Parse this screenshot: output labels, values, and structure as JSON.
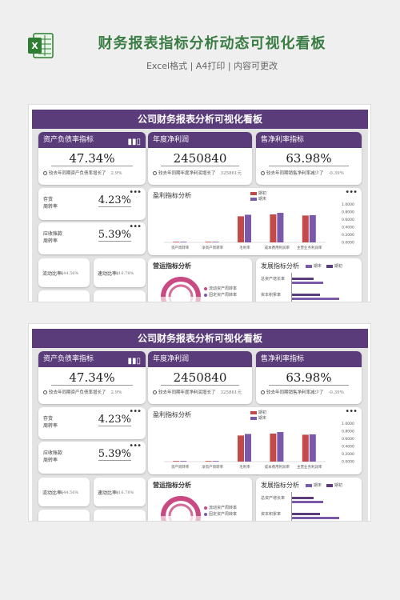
{
  "header": {
    "title": "财务报表指标分析动态可视化看板",
    "subtitle": "Excel格式 | A4打印 | 内容可更改"
  },
  "dashboard": {
    "title": "公司财务报表分析可视化看板",
    "kpis": [
      {
        "label": "资产负债率指标",
        "value": "47.34%",
        "note": "较去年同期资产负债率增长了",
        "delta": "2.9%"
      },
      {
        "label": "年度净利润",
        "value": "2450840",
        "note": "较去年同期年度净利润增长了",
        "delta": "325861元"
      },
      {
        "label": "售净利率指标",
        "value": "63.98%",
        "note": "较去年同期销售净利率减少了",
        "delta": "-0.39%"
      }
    ],
    "turnover": [
      {
        "label1": "存货",
        "label2": "周转率",
        "value": "4.23%"
      },
      {
        "label1": "应收账款",
        "label2": "周转率",
        "value": "5.39%"
      }
    ],
    "ratios": [
      {
        "label": "流动比率:",
        "value": "644.56%"
      },
      {
        "label": "速动比率:",
        "value": "416.78%"
      }
    ],
    "profit_panel": {
      "title": "盈利指标分析",
      "legend": [
        "期初",
        "期末"
      ],
      "y_ticks": [
        "1.0000",
        "0.8000",
        "0.6000",
        "0.4000",
        "0.2000",
        "0.0000"
      ]
    },
    "ops_panel": {
      "title": "营运指标分析",
      "legend": [
        "流动资产周转率",
        "固定资产周转率"
      ]
    },
    "dev_panel": {
      "title": "发展指标分析",
      "legend": [
        "期末",
        "期初"
      ],
      "rows": [
        "总资产增长率",
        "资本积累率"
      ]
    },
    "more_label": "•••"
  },
  "chart_data": {
    "type": "bar",
    "title": "盈利指标分析",
    "categories": [
      "资产周转率",
      "净资产周转率",
      "毛利率",
      "成本费用利润率",
      "主营业务利润率"
    ],
    "series": [
      {
        "name": "期初",
        "values": [
          0.01,
          0.01,
          0.68,
          0.73,
          0.7
        ]
      },
      {
        "name": "期末",
        "values": [
          0.01,
          0.01,
          0.72,
          0.77,
          0.71
        ]
      }
    ],
    "ylim": [
      0,
      1
    ],
    "colors": {
      "期初": "#c44a4a",
      "期末": "#7a5aa8"
    }
  },
  "theme": {
    "accent": "#5a3c7a",
    "excel_green": "#2e7d32"
  }
}
